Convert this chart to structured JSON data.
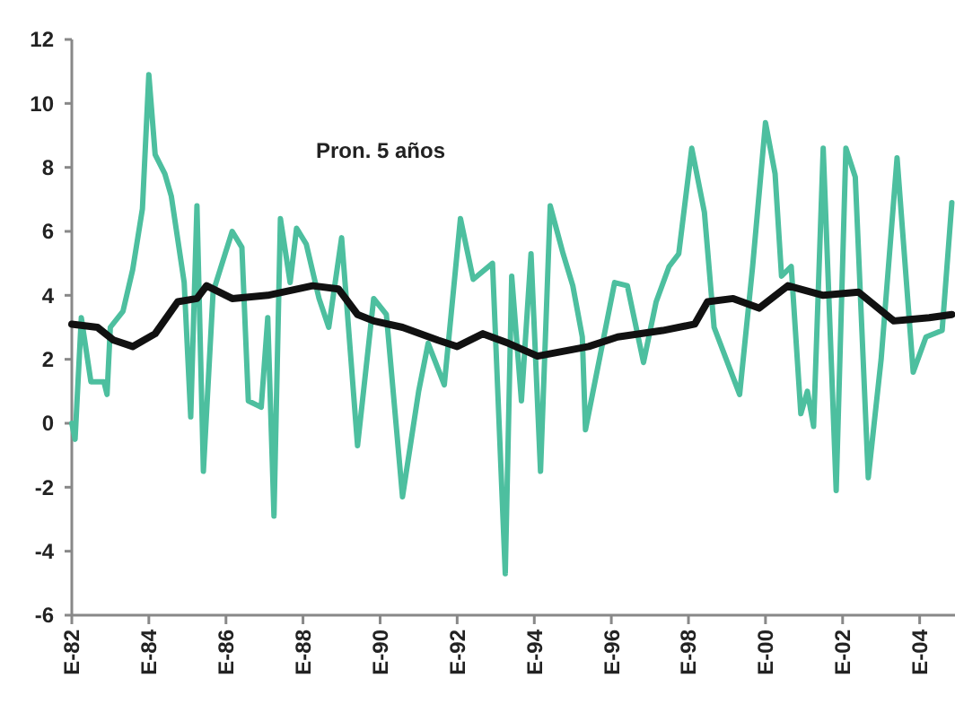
{
  "chart_data": {
    "type": "line",
    "annotations": [
      "Pron. 5 años"
    ],
    "xlim": [
      "1982-01",
      "2004-12"
    ],
    "xticks": [
      {
        "value": "1982-01",
        "label": "E-82"
      },
      {
        "value": "1984-01",
        "label": "E-84"
      },
      {
        "value": "1986-01",
        "label": "E-86"
      },
      {
        "value": "1988-01",
        "label": "E-88"
      },
      {
        "value": "1990-01",
        "label": "E-90"
      },
      {
        "value": "1992-01",
        "label": "E-92"
      },
      {
        "value": "1994-01",
        "label": "E-94"
      },
      {
        "value": "1996-01",
        "label": "E-96"
      },
      {
        "value": "1998-01",
        "label": "E-98"
      },
      {
        "value": "2000-01",
        "label": "E-00"
      },
      {
        "value": "2002-01",
        "label": "E-02"
      },
      {
        "value": "2004-01",
        "label": "E-04"
      }
    ],
    "ylim": [
      -6,
      12
    ],
    "yticks": [
      -6,
      -4,
      -2,
      0,
      2,
      4,
      6,
      8,
      10,
      12
    ],
    "marker": "none",
    "line_style": "solid",
    "series": [
      {
        "color": "#4dbf9f",
        "x": [
          "1982-01",
          "1982-02",
          "1982-04",
          "1982-07",
          "1982-11",
          "1982-12",
          "1983-01",
          "1983-05",
          "1983-08",
          "1983-11",
          "1984-01",
          "1984-03",
          "1984-06",
          "1984-08",
          "1984-12",
          "1985-02",
          "1985-04",
          "1985-06",
          "1985-09",
          "1986-03",
          "1986-06",
          "1986-08",
          "1986-12",
          "1987-02",
          "1987-04",
          "1987-06",
          "1987-09",
          "1987-11",
          "1988-02",
          "1988-06",
          "1988-09",
          "1989-01",
          "1989-06",
          "1989-11",
          "1990-03",
          "1990-08",
          "1991-01",
          "1991-04",
          "1991-09",
          "1992-02",
          "1992-06",
          "1992-12",
          "1993-04",
          "1993-06",
          "1993-09",
          "1993-12",
          "1994-03",
          "1994-06",
          "1994-10",
          "1995-01",
          "1995-04",
          "1995-05",
          "1996-02",
          "1996-06",
          "1996-11",
          "1997-03",
          "1997-07",
          "1997-10",
          "1998-02",
          "1998-06",
          "1998-09",
          "1999-05",
          "1999-09",
          "2000-01",
          "2000-04",
          "2000-06",
          "2000-09",
          "2000-12",
          "2001-02",
          "2001-04",
          "2001-07",
          "2001-11",
          "2002-02",
          "2002-05",
          "2002-09",
          "2003-01",
          "2003-06",
          "2003-11",
          "2004-03",
          "2004-08",
          "2004-11"
        ],
        "values": [
          0,
          -0.5,
          3.3,
          1.3,
          1.3,
          0.9,
          3.0,
          3.5,
          4.8,
          6.7,
          10.9,
          8.4,
          7.8,
          7.1,
          4.4,
          0.2,
          6.8,
          -1.5,
          4.1,
          6.0,
          5.5,
          0.7,
          0.5,
          3.3,
          -2.9,
          6.4,
          4.4,
          6.1,
          5.6,
          3.9,
          3.0,
          5.8,
          -0.7,
          3.9,
          3.4,
          -2.3,
          1.0,
          2.5,
          1.2,
          6.4,
          4.5,
          5.0,
          -4.7,
          4.6,
          0.7,
          5.3,
          -1.5,
          6.8,
          5.3,
          4.3,
          2.7,
          -0.2,
          4.4,
          4.3,
          1.9,
          3.8,
          4.9,
          5.3,
          8.6,
          6.6,
          3.0,
          0.9,
          4.9,
          9.4,
          7.8,
          4.6,
          4.9,
          0.3,
          1.0,
          -0.1,
          8.6,
          -2.1,
          8.6,
          7.7,
          -1.7,
          2.0,
          8.3,
          1.6,
          2.7,
          2.9,
          6.9
        ]
      },
      {
        "color": "#111111",
        "x": [
          "1982-01",
          "1982-09",
          "1983-02",
          "1983-08",
          "1984-03",
          "1984-10",
          "1985-04",
          "1985-07",
          "1986-03",
          "1987-02",
          "1988-04",
          "1988-12",
          "1989-06",
          "1989-11",
          "1990-08",
          "1991-07",
          "1992-01",
          "1992-09",
          "1993-05",
          "1994-02",
          "1995-06",
          "1996-03",
          "1997-05",
          "1998-03",
          "1998-07",
          "1999-03",
          "1999-11",
          "2000-08",
          "2001-07",
          "2002-06",
          "2003-05",
          "2004-04",
          "2004-11"
        ],
        "values": [
          3.1,
          3.0,
          2.6,
          2.4,
          2.8,
          3.8,
          3.9,
          4.3,
          3.9,
          4.0,
          4.3,
          4.2,
          3.4,
          3.2,
          3.0,
          2.6,
          2.4,
          2.8,
          2.5,
          2.1,
          2.4,
          2.7,
          2.9,
          3.1,
          3.8,
          3.9,
          3.6,
          4.3,
          4.0,
          4.1,
          3.2,
          3.3,
          3.4
        ]
      }
    ]
  }
}
